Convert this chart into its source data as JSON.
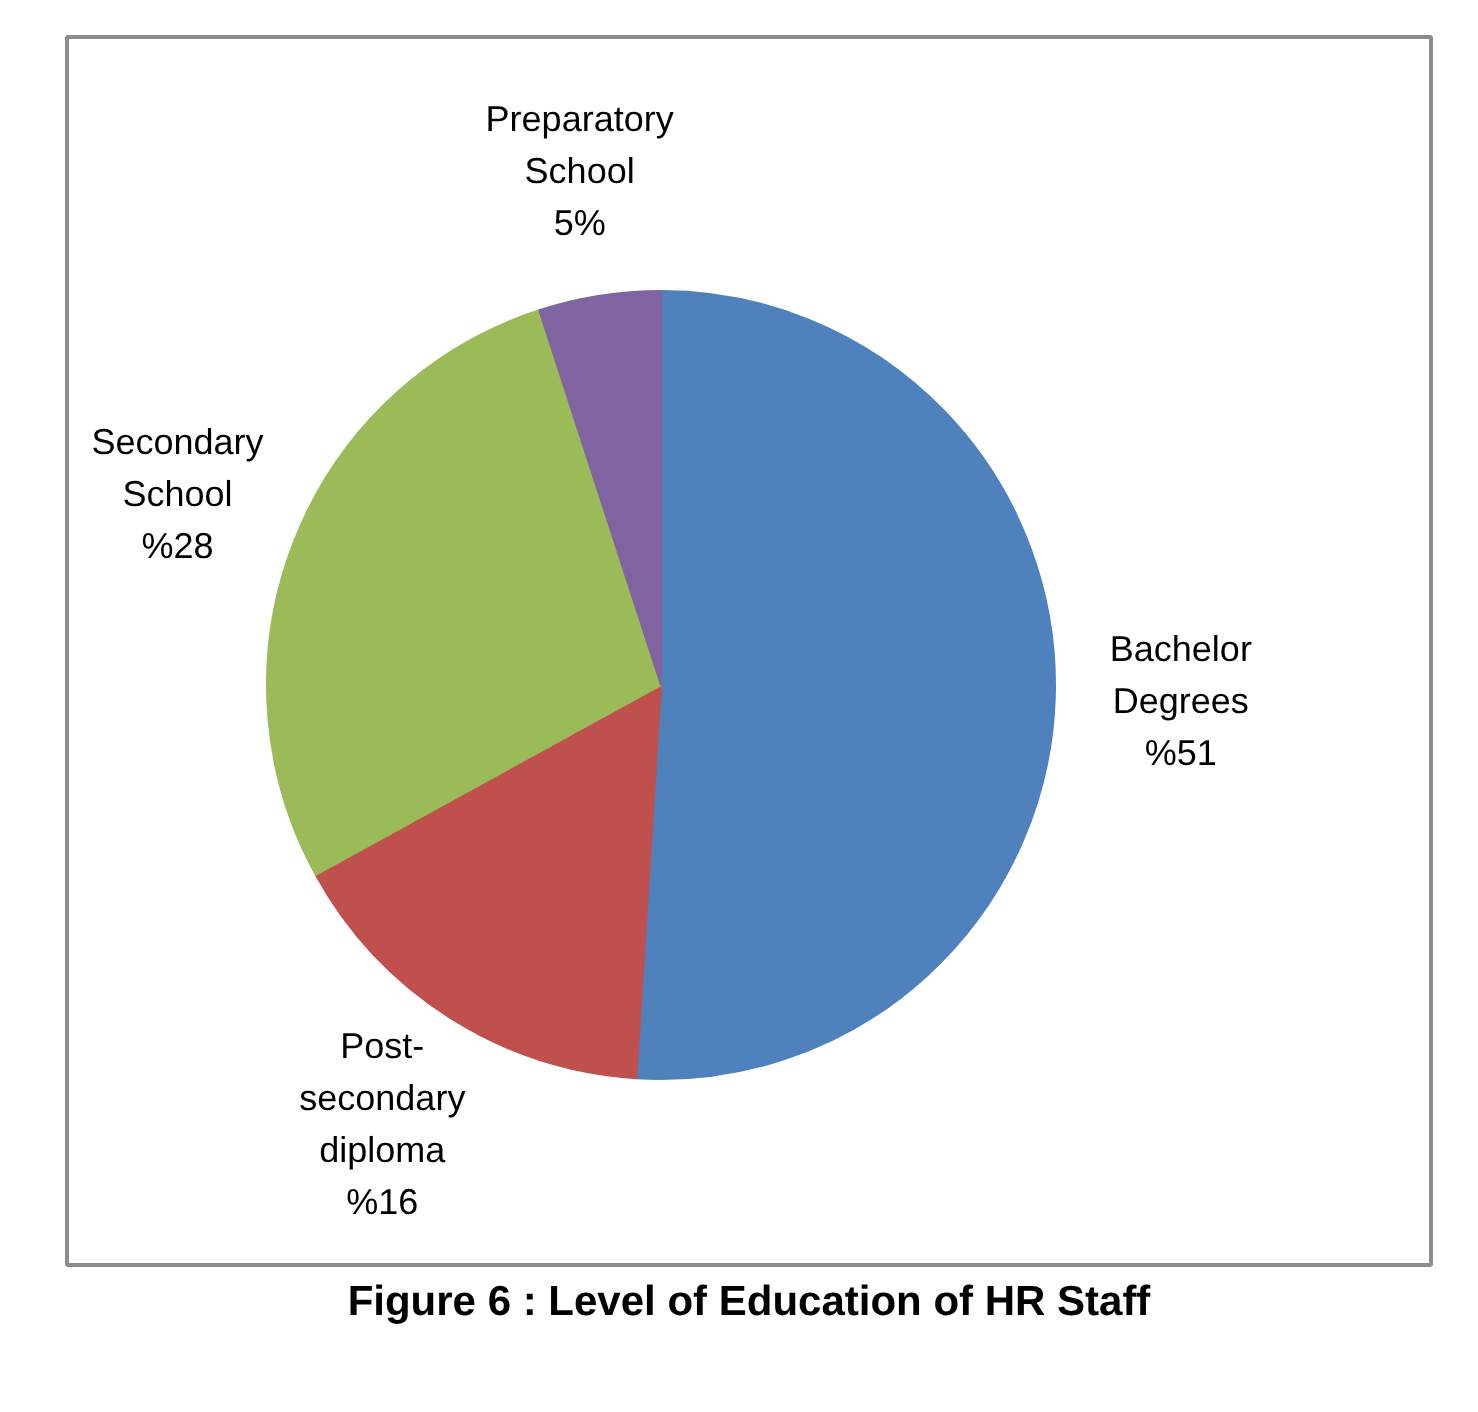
{
  "chart_data": {
    "type": "pie",
    "title": "Figure 6 : Level of Education of HR Staff",
    "categories": [
      "Bachelor Degrees",
      "Post-secondary diploma",
      "Secondary School",
      "Preparatory School"
    ],
    "values": [
      51,
      16,
      28,
      5
    ],
    "value_labels": [
      "%51",
      "%16",
      "%28",
      "5%"
    ],
    "colors": [
      "#4f81bd",
      "#c0504d",
      "#9bbb59",
      "#8064a2"
    ]
  }
}
